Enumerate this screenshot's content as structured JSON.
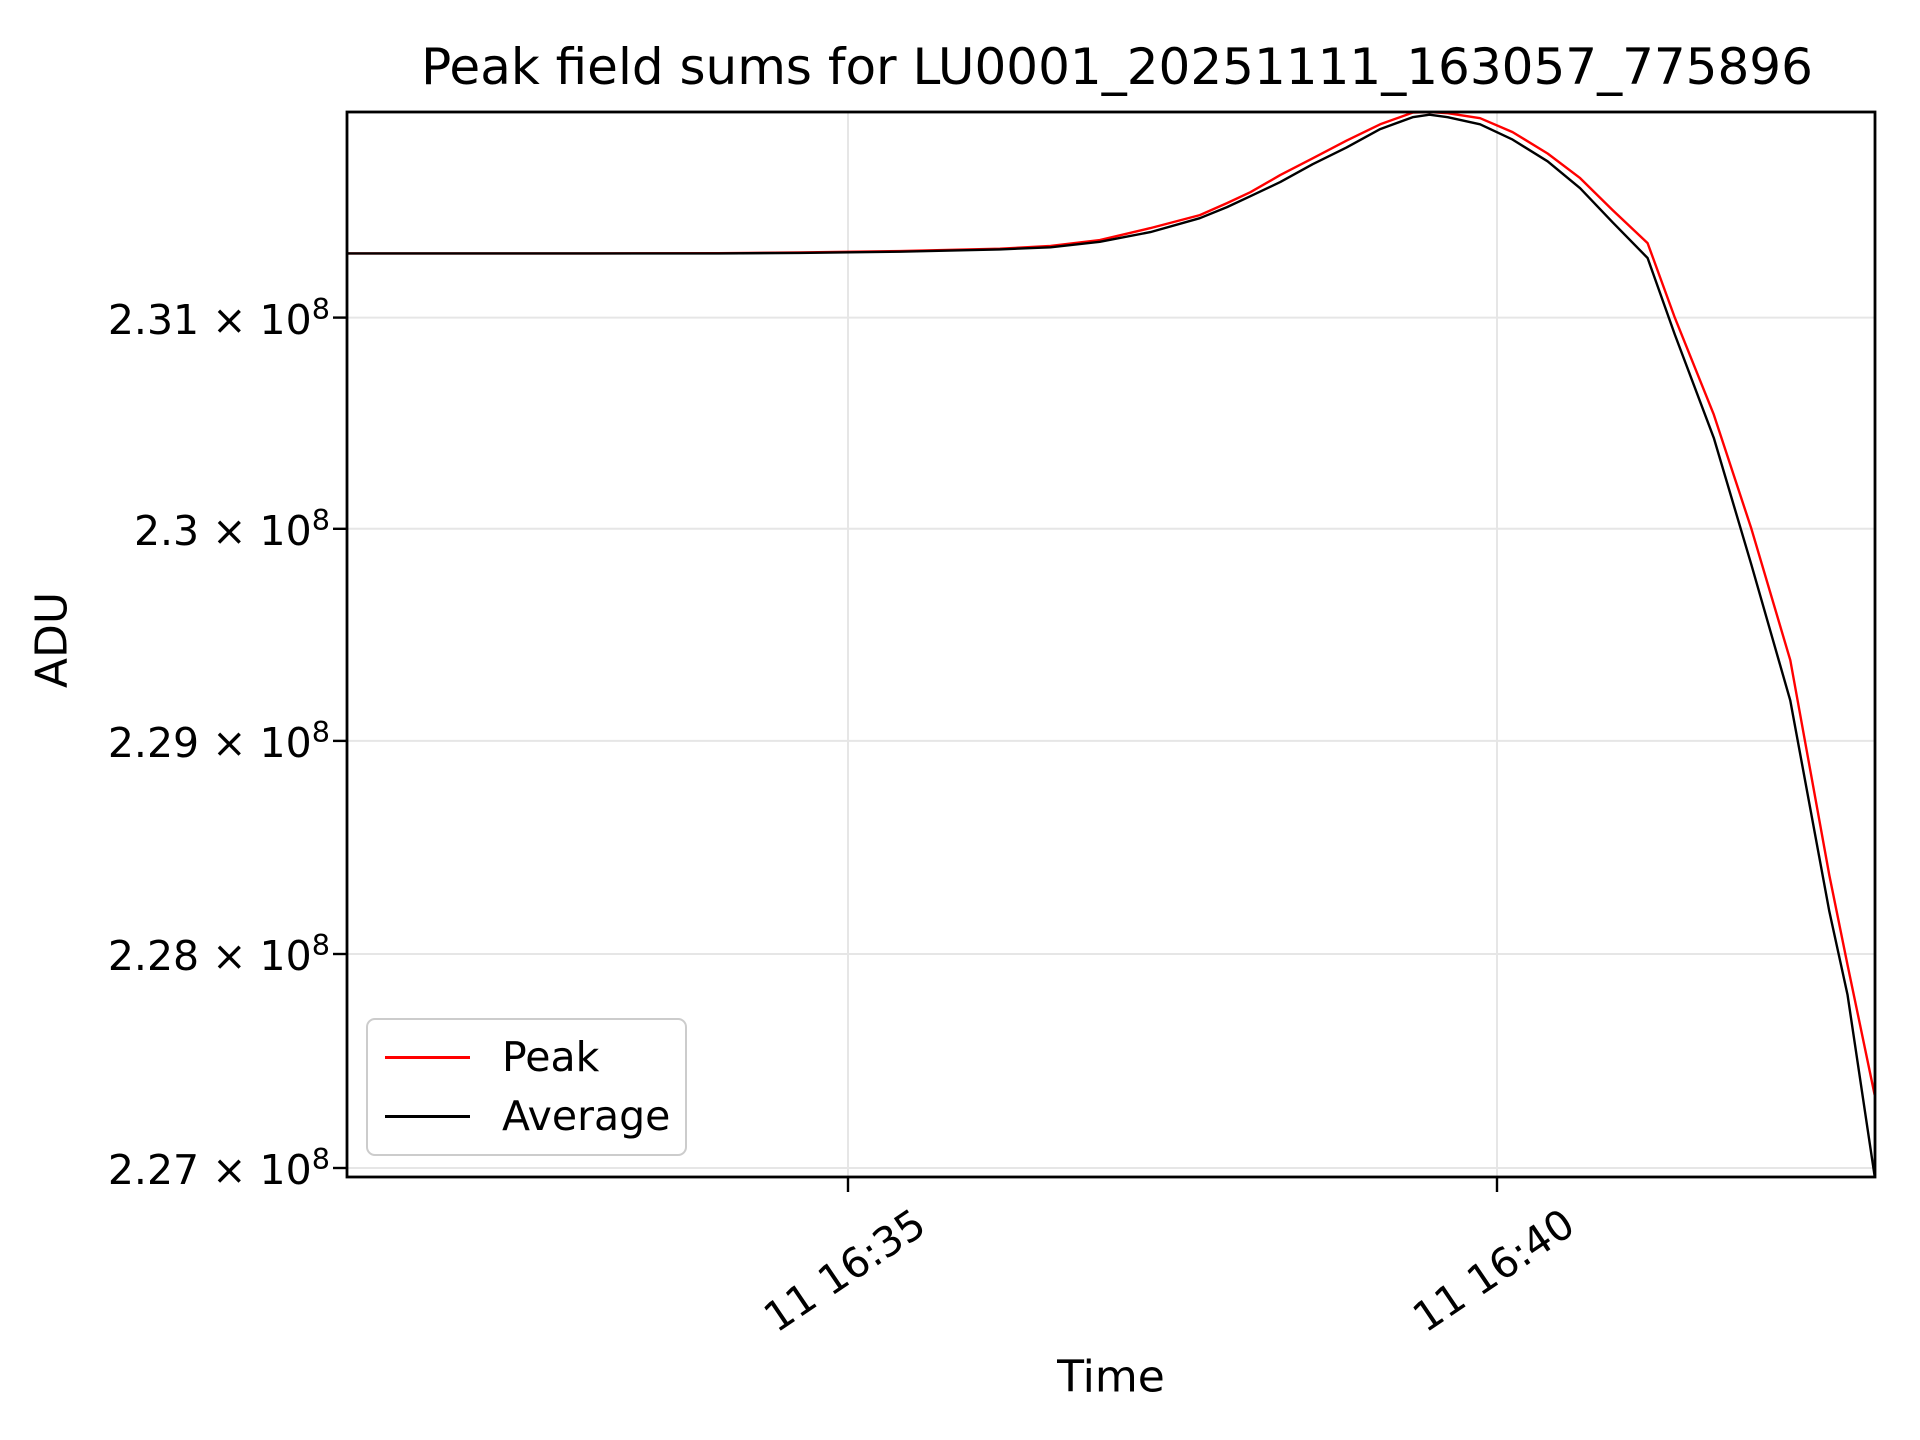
{
  "chart_data": {
    "type": "line",
    "title": "Peak field sums for LU0001_20251111_163057_775896",
    "xlabel": "Time",
    "ylabel": "ADU",
    "yscale": "log",
    "grid": true,
    "legend_position": "lower left",
    "x_unit": "minutes after 16:30, day 11 (2025-11-11)",
    "x": [
      1.14,
      2.0,
      3.0,
      4.0,
      4.63,
      5.4,
      6.17,
      6.56,
      6.94,
      7.33,
      7.71,
      7.92,
      8.1,
      8.33,
      8.58,
      8.84,
      9.1,
      9.35,
      9.48,
      9.62,
      9.87,
      10.12,
      10.39,
      10.64,
      10.89,
      11.16,
      11.37,
      11.67,
      11.96,
      12.26,
      12.56,
      12.7,
      12.91
    ],
    "series": [
      {
        "name": "Peak",
        "color": "#ff0000",
        "values": [
          231305000,
          231305000,
          231305000,
          231306000,
          231309000,
          231316000,
          231327000,
          231340000,
          231368000,
          231425000,
          231487000,
          231544000,
          231596000,
          231677000,
          231757000,
          231841000,
          231919000,
          231975000,
          231977000,
          231972000,
          231948000,
          231882000,
          231780000,
          231663000,
          231511000,
          231354000,
          231000000,
          230540000,
          230000000,
          229380000,
          228370000,
          227950000,
          227340000
        ]
      },
      {
        "name": "Average",
        "color": "#000000",
        "values": [
          231305000,
          231305000,
          231305000,
          231305000,
          231307000,
          231313000,
          231324000,
          231334000,
          231360000,
          231406000,
          231472000,
          231525000,
          231577000,
          231644000,
          231729000,
          231808000,
          231896000,
          231953000,
          231965000,
          231953000,
          231919000,
          231846000,
          231743000,
          231615000,
          231453000,
          231283000,
          230920000,
          230430000,
          229830000,
          229190000,
          228200000,
          227810000,
          226960000
        ]
      }
    ],
    "x_ticks": [
      {
        "minutes": 5,
        "label": "11 16:35"
      },
      {
        "minutes": 10,
        "label": "11 16:40"
      }
    ],
    "y_ticks": [
      {
        "value": 231000000,
        "mantissa": "2.31 × 10",
        "exponent": "8"
      },
      {
        "value": 230000000,
        "mantissa": "2.3 × 10",
        "exponent": "8"
      },
      {
        "value": 229000000,
        "mantissa": "2.29 × 10",
        "exponent": "8"
      },
      {
        "value": 228000000,
        "mantissa": "2.28 × 10",
        "exponent": "8"
      },
      {
        "value": 227000000,
        "mantissa": "2.27 × 10",
        "exponent": "8"
      }
    ],
    "xlim": [
      1.14,
      12.91
    ],
    "ylim": [
      226941000,
      231978000
    ]
  }
}
